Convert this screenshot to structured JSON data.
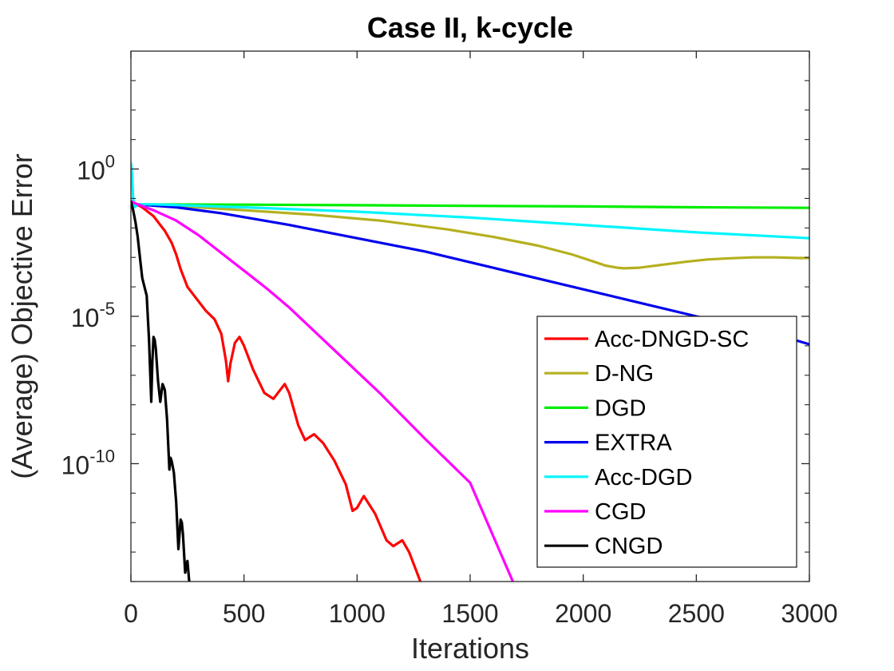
{
  "chart_data": {
    "type": "line",
    "title": "Case II, k-cycle",
    "xlabel": "Iterations",
    "ylabel": "(Average) Objective Error",
    "xlim": [
      0,
      3000
    ],
    "ylim_log10": [
      -14,
      4
    ],
    "y_scale": "log",
    "xticks": [
      0,
      500,
      1000,
      1500,
      2000,
      2500,
      3000
    ],
    "xtick_labels": [
      "0",
      "500",
      "1000",
      "1500",
      "2000",
      "2500",
      "3000"
    ],
    "yticks_log10": [
      0,
      -5,
      -10
    ],
    "ytick_labels": [
      {
        "base": "10",
        "exp": "0"
      },
      {
        "base": "10",
        "exp": "-5"
      },
      {
        "base": "10",
        "exp": "-10"
      }
    ],
    "minor_yticks_log10": [
      -14,
      -13,
      -12,
      -11,
      -9,
      -8,
      -7,
      -6,
      -4,
      -3,
      -2,
      -1,
      1,
      2,
      3
    ],
    "legend_position": "lower-right",
    "series": [
      {
        "name": "Acc-DNGD-SC",
        "color": "#ff0000",
        "x": [
          0,
          50,
          100,
          150,
          180,
          200,
          220,
          250,
          280,
          310,
          330,
          370,
          400,
          420,
          430,
          440,
          460,
          480,
          500,
          540,
          590,
          630,
          660,
          680,
          700,
          740,
          770,
          790,
          810,
          850,
          900,
          950,
          980,
          1000,
          1030,
          1080,
          1130,
          1160,
          1200,
          1230,
          1260,
          1290
        ],
        "y": [
          -1.1,
          -1.3,
          -1.6,
          -2.1,
          -2.5,
          -2.9,
          -3.4,
          -4.0,
          -4.3,
          -4.6,
          -4.8,
          -5.1,
          -5.6,
          -6.5,
          -7.2,
          -6.6,
          -5.9,
          -5.7,
          -6.0,
          -6.8,
          -7.6,
          -7.8,
          -7.5,
          -7.3,
          -7.6,
          -8.7,
          -9.2,
          -9.1,
          -9.0,
          -9.3,
          -9.9,
          -10.7,
          -11.6,
          -11.5,
          -11.1,
          -11.7,
          -12.6,
          -12.8,
          -12.6,
          -13.0,
          -13.6,
          -14.2
        ]
      },
      {
        "name": "D-NG",
        "color": "#b5b01f",
        "x": [
          0,
          20,
          200,
          500,
          800,
          1100,
          1400,
          1600,
          1800,
          1950,
          2050,
          2100,
          2150,
          2180,
          2250,
          2350,
          2450,
          2550,
          2650,
          2750,
          2850,
          2950,
          3000
        ],
        "y": [
          -1.1,
          -1.2,
          -1.25,
          -1.4,
          -1.55,
          -1.75,
          -2.05,
          -2.3,
          -2.6,
          -2.9,
          -3.15,
          -3.28,
          -3.35,
          -3.37,
          -3.35,
          -3.25,
          -3.15,
          -3.07,
          -3.03,
          -3.0,
          -3.0,
          -3.02,
          -3.02
        ]
      },
      {
        "name": "DGD",
        "color": "#00ee00",
        "x": [
          0,
          20,
          500,
          1000,
          1500,
          2000,
          2500,
          3000
        ],
        "y": [
          -1.1,
          -1.2,
          -1.21,
          -1.23,
          -1.25,
          -1.27,
          -1.3,
          -1.32
        ]
      },
      {
        "name": "EXTRA",
        "color": "#0000ee",
        "x": [
          0,
          20,
          200,
          400,
          700,
          1000,
          1300,
          1600,
          1900,
          2200,
          2500,
          2800,
          3000
        ],
        "y": [
          -1.1,
          -1.2,
          -1.3,
          -1.5,
          -1.9,
          -2.35,
          -2.8,
          -3.35,
          -3.9,
          -4.45,
          -5.0,
          -5.5,
          -5.95
        ]
      },
      {
        "name": "Acc-DGD",
        "color": "#00f5ff",
        "x": [
          0,
          5,
          10,
          15,
          30,
          100,
          500,
          1000,
          1500,
          2000,
          2500,
          3000
        ],
        "y": [
          0.2,
          -0.2,
          -1.0,
          -1.3,
          -1.2,
          -1.2,
          -1.3,
          -1.45,
          -1.65,
          -1.9,
          -2.15,
          -2.35
        ]
      },
      {
        "name": "CGD",
        "color": "#ff00ff",
        "x": [
          0,
          30,
          100,
          200,
          300,
          400,
          500,
          600,
          700,
          900,
          1100,
          1300,
          1500,
          1700
        ],
        "y": [
          -1.1,
          -1.2,
          -1.4,
          -1.75,
          -2.25,
          -2.85,
          -3.45,
          -4.05,
          -4.7,
          -6.15,
          -7.6,
          -9.15,
          -10.65,
          -14.2
        ]
      },
      {
        "name": "CNGD",
        "color": "#000000",
        "x": [
          0,
          10,
          20,
          30,
          40,
          50,
          60,
          70,
          80,
          90,
          95,
          100,
          105,
          110,
          120,
          130,
          140,
          150,
          160,
          170,
          175,
          180,
          190,
          200,
          210,
          220,
          225,
          230,
          240,
          250,
          260
        ],
        "y": [
          -1.1,
          -1.4,
          -1.8,
          -2.3,
          -3.0,
          -3.7,
          -4.0,
          -4.3,
          -5.8,
          -7.9,
          -6.5,
          -5.7,
          -5.8,
          -6.1,
          -7.2,
          -7.9,
          -7.3,
          -7.5,
          -8.5,
          -10.2,
          -9.8,
          -9.9,
          -10.3,
          -11.3,
          -12.9,
          -11.9,
          -12.0,
          -12.4,
          -13.7,
          -13.3,
          -14.2
        ]
      }
    ]
  }
}
